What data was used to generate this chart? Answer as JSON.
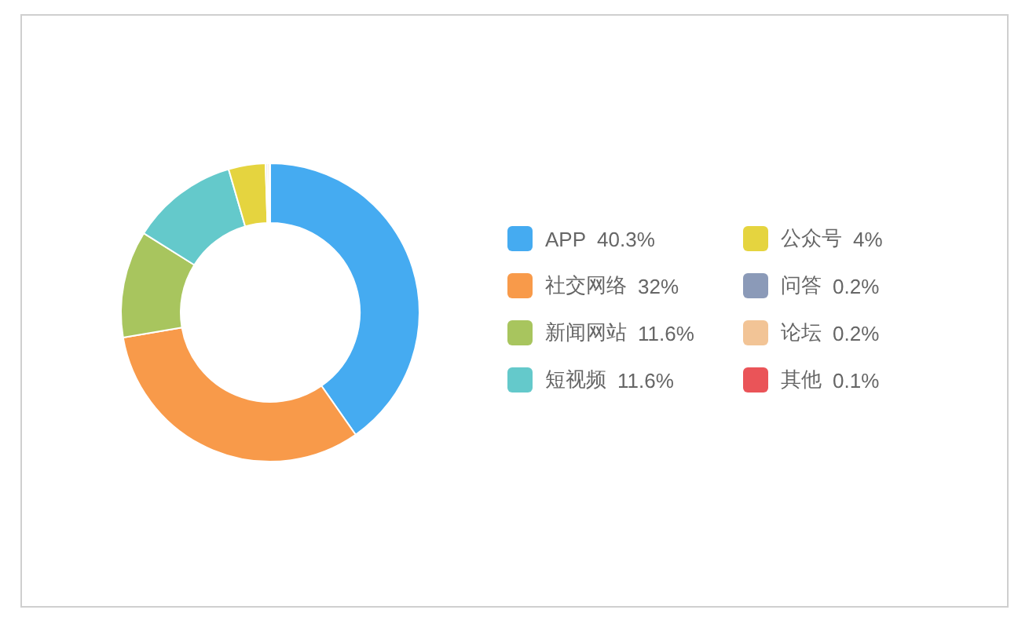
{
  "chart_data": {
    "type": "donut",
    "categories": [
      "APP",
      "社交网络",
      "新闻网站",
      "短视频",
      "公众号",
      "问答",
      "论坛",
      "其他"
    ],
    "values": [
      40.3,
      32,
      11.6,
      11.6,
      4,
      0.2,
      0.2,
      0.1
    ],
    "value_labels": [
      "40.3%",
      "32%",
      "11.6%",
      "11.6%",
      "4%",
      "0.2%",
      "0.2%",
      "0.1%"
    ],
    "colors": [
      "#45abf1",
      "#f89a4a",
      "#a8c55e",
      "#64c9cb",
      "#e5d43f",
      "#8b9ab8",
      "#f2c496",
      "#ea5458"
    ],
    "legend": "right"
  }
}
